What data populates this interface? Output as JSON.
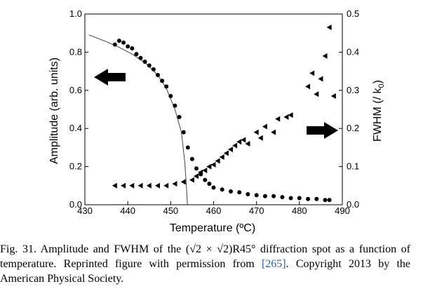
{
  "chart_data": {
    "type": "scatter",
    "xlabel": "Temperature (ºC)",
    "ylabel_left": "Amplitude (arb. units)",
    "ylabel_right": "FWHM (/ k",
    "ylabel_right_sub": "0",
    "ylabel_right_close": ")",
    "xlim": [
      430,
      490
    ],
    "ylim_left": [
      0,
      1.0
    ],
    "ylim_right": [
      0,
      0.5
    ],
    "x_ticks": [
      "430",
      "440",
      "450",
      "460",
      "470",
      "480",
      "490"
    ],
    "y_left_ticks": [
      "0.0",
      "0.2",
      "0.4",
      "0.6",
      "0.8",
      "1.0"
    ],
    "y_right_ticks": [
      "0.0",
      "0.1",
      "0.2",
      "0.3",
      "0.4",
      "0.5"
    ],
    "arrows": [
      {
        "direction": "left",
        "meaning": "left axis"
      },
      {
        "direction": "right",
        "meaning": "right axis"
      }
    ],
    "series": [
      {
        "marker": "circle",
        "axis": "left",
        "color": "#000000",
        "points": [
          [
            437,
            0.84
          ],
          [
            438,
            0.86
          ],
          [
            439,
            0.85
          ],
          [
            440,
            0.83
          ],
          [
            441,
            0.82
          ],
          [
            442,
            0.79
          ],
          [
            443,
            0.77
          ],
          [
            444,
            0.75
          ],
          [
            445,
            0.73
          ],
          [
            446,
            0.71
          ],
          [
            447,
            0.68
          ],
          [
            448,
            0.65
          ],
          [
            449,
            0.62
          ],
          [
            450,
            0.57
          ],
          [
            451,
            0.52
          ],
          [
            452,
            0.46
          ],
          [
            453,
            0.38
          ],
          [
            454,
            0.3
          ],
          [
            455,
            0.24
          ],
          [
            456,
            0.19
          ],
          [
            457,
            0.16
          ],
          [
            458,
            0.13
          ],
          [
            459,
            0.11
          ],
          [
            460,
            0.09
          ],
          [
            462,
            0.08
          ],
          [
            464,
            0.07
          ],
          [
            466,
            0.065
          ],
          [
            468,
            0.055
          ],
          [
            470,
            0.05
          ],
          [
            472,
            0.045
          ],
          [
            474,
            0.045
          ],
          [
            476,
            0.04
          ],
          [
            478,
            0.035
          ],
          [
            480,
            0.035
          ],
          [
            482,
            0.03
          ],
          [
            484,
            0.03
          ],
          [
            486,
            0.025
          ],
          [
            487,
            0.025
          ]
        ]
      },
      {
        "marker": "triangle-left",
        "axis": "right",
        "color": "#000000",
        "points": [
          [
            437,
            0.05
          ],
          [
            439,
            0.05
          ],
          [
            441,
            0.05
          ],
          [
            443,
            0.05
          ],
          [
            445,
            0.05
          ],
          [
            447,
            0.05
          ],
          [
            449,
            0.05
          ],
          [
            451,
            0.055
          ],
          [
            453,
            0.06
          ],
          [
            455,
            0.065
          ],
          [
            456,
            0.075
          ],
          [
            457,
            0.085
          ],
          [
            458,
            0.09
          ],
          [
            459,
            0.1
          ],
          [
            460,
            0.105
          ],
          [
            461,
            0.115
          ],
          [
            462,
            0.125
          ],
          [
            463,
            0.135
          ],
          [
            464,
            0.145
          ],
          [
            465,
            0.155
          ],
          [
            466,
            0.165
          ],
          [
            467,
            0.17
          ],
          [
            468,
            0.16
          ],
          [
            470,
            0.19
          ],
          [
            471,
            0.175
          ],
          [
            472,
            0.205
          ],
          [
            474,
            0.19
          ],
          [
            475,
            0.225
          ],
          [
            477,
            0.23
          ],
          [
            478,
            0.235
          ],
          [
            482,
            0.31
          ],
          [
            483,
            0.345
          ],
          [
            484,
            0.29
          ],
          [
            485,
            0.33
          ],
          [
            486,
            0.39
          ],
          [
            487,
            0.465
          ],
          [
            488,
            0.285
          ]
        ]
      }
    ],
    "fit_line": {
      "axis": "left",
      "color": "#444444",
      "points": [
        [
          431,
          0.89
        ],
        [
          435,
          0.855
        ],
        [
          438,
          0.825
        ],
        [
          441,
          0.79
        ],
        [
          444,
          0.745
        ],
        [
          447,
          0.68
        ],
        [
          449,
          0.61
        ],
        [
          451,
          0.5
        ],
        [
          452.5,
          0.38
        ],
        [
          453.3,
          0.22
        ],
        [
          453.7,
          0.08
        ],
        [
          453.9,
          0.0
        ]
      ]
    }
  },
  "caption": {
    "prefix": "Fig. 31. Amplitude and FWHM of the (√2 × √2)R45° diffraction spot as a function of temperature. Reprinted figure with permission from ",
    "reference": "[265]",
    "suffix": ". Copyright 2013 by the American Physical Society."
  }
}
